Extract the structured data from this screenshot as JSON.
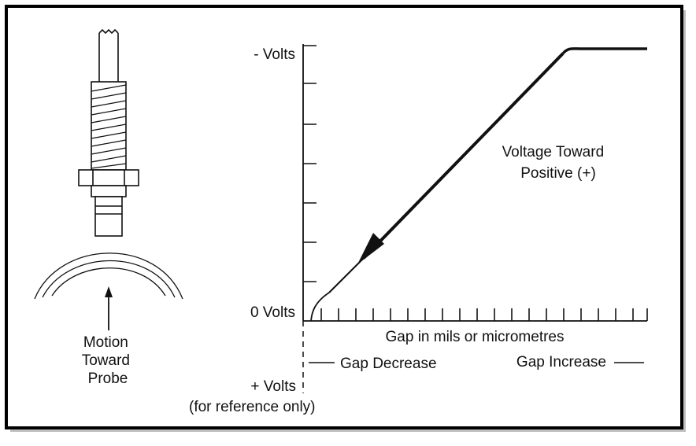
{
  "probe": {
    "motion_lines": [
      "Motion",
      "Toward",
      "Probe"
    ]
  },
  "chart": {
    "y_top_label": "- Volts",
    "y_zero_label": "0 Volts",
    "y_plus_label": "+ Volts",
    "y_plus_note": "(for reference only)",
    "x_axis_label": "Gap in mils or micrometres",
    "gap_decrease_label": "Gap Decrease",
    "gap_increase_label": "Gap Increase",
    "annotation_lines": [
      "Voltage Toward",
      "Positive (+)"
    ]
  },
  "colors": {
    "ink": "#111111",
    "frame": "#000000",
    "background": "#ffffff"
  }
}
